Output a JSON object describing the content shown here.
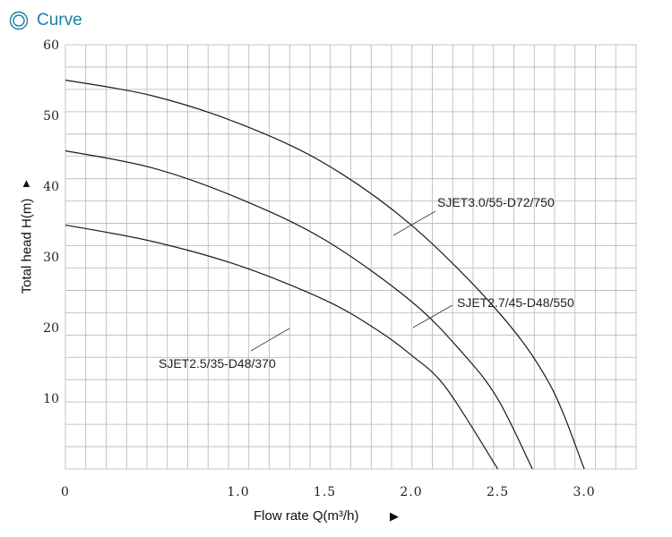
{
  "header": {
    "title": "Curve",
    "icon": "double-circle-icon",
    "accent_color": "#1d7fa6"
  },
  "chart_data": {
    "type": "line",
    "title": "",
    "xlabel": "Flow rate Q(m³/h)",
    "ylabel": "Total head H(m)",
    "xlim": [
      0,
      3.3
    ],
    "ylim": [
      0,
      60
    ],
    "x_ticks": [
      0,
      1.0,
      1.5,
      2.0,
      2.5,
      3.0
    ],
    "x_tick_labels": [
      "0",
      "1.0",
      "1.5",
      "2.0",
      "2.5",
      "3.0"
    ],
    "y_ticks": [
      10,
      20,
      30,
      40,
      50,
      60
    ],
    "y_tick_labels": [
      "10",
      "20",
      "30",
      "40",
      "50",
      "60"
    ],
    "grid": true,
    "series": [
      {
        "name": "SJET3.0/55-D72/750",
        "x": [
          0,
          0.5,
          1.0,
          1.5,
          2.0,
          2.5,
          2.8,
          3.0
        ],
        "y": [
          55,
          52.8,
          48.9,
          43.2,
          34.5,
          22.3,
          12.0,
          0
        ]
      },
      {
        "name": "SJET2.7/45-D48/550",
        "x": [
          0,
          0.5,
          1.0,
          1.5,
          2.0,
          2.3,
          2.5,
          2.7
        ],
        "y": [
          45,
          42.6,
          38.3,
          32.4,
          23.7,
          16.3,
          9.9,
          0
        ]
      },
      {
        "name": "SJET2.5/35-D48/370",
        "x": [
          0,
          0.5,
          1.0,
          1.5,
          1.8,
          2.0,
          2.2,
          2.5
        ],
        "y": [
          34.5,
          32.2,
          28.8,
          23.9,
          19.7,
          16.1,
          11.5,
          0
        ]
      }
    ]
  }
}
